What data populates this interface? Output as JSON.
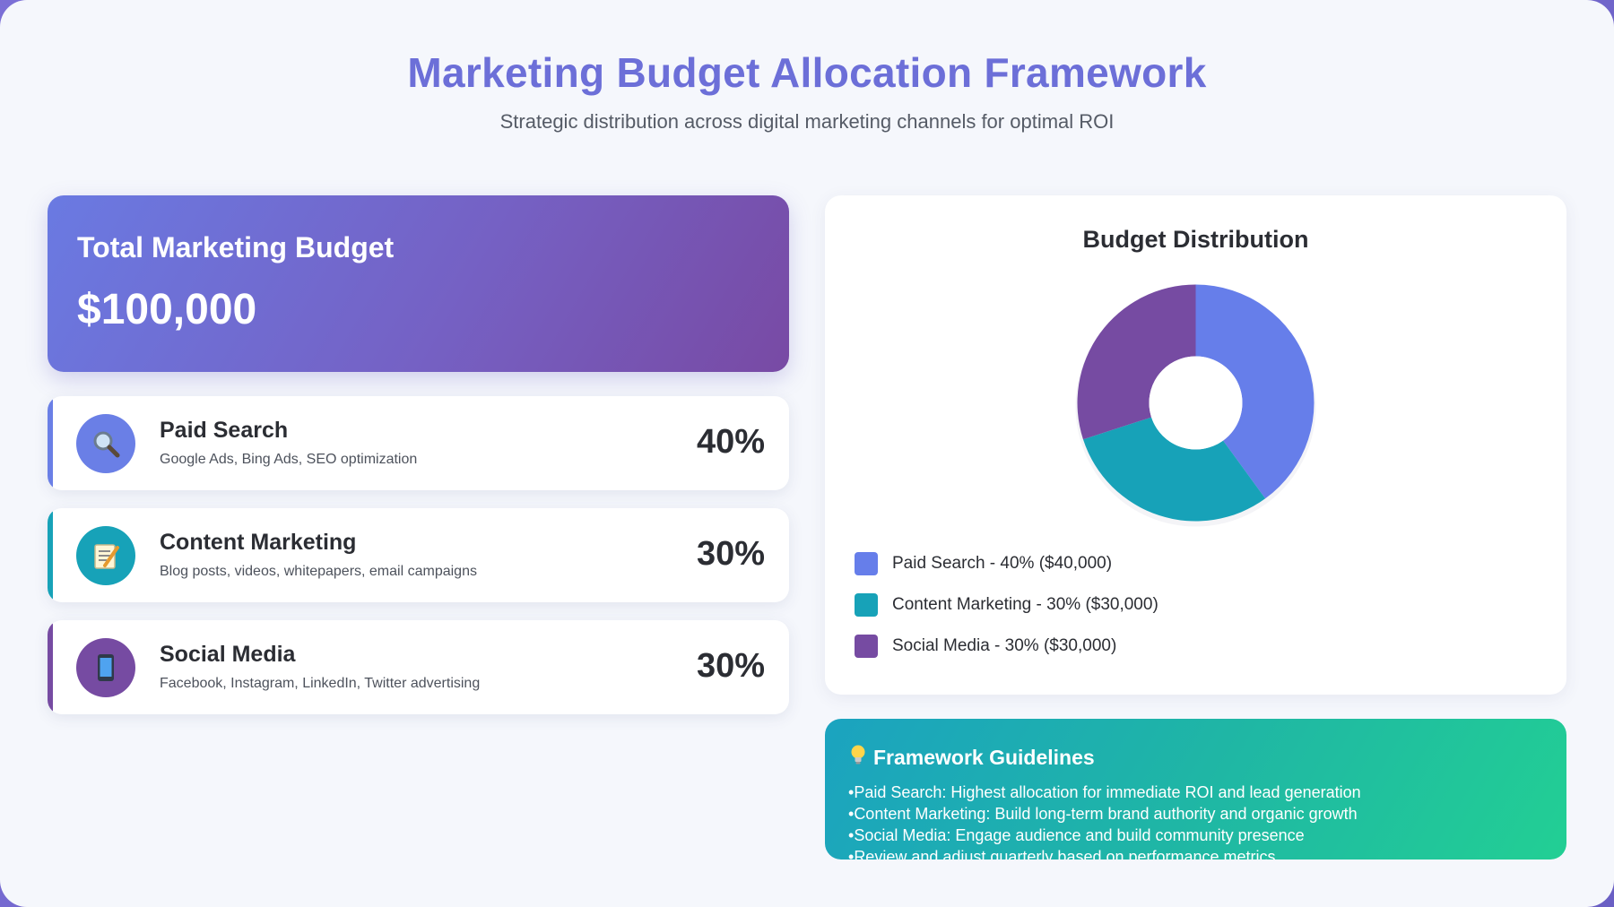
{
  "header": {
    "title": "Marketing Budget Allocation Framework",
    "subtitle": "Strategic distribution across digital marketing channels for optimal ROI"
  },
  "budget": {
    "label": "Total Marketing Budget",
    "value": "$100,000"
  },
  "channels": [
    {
      "name": "Paid Search",
      "description": "Google Ads, Bing Ads, SEO optimization",
      "percent": "40%",
      "icon": "magnifier-icon",
      "color": "#6a7fe6"
    },
    {
      "name": "Content Marketing",
      "description": "Blog posts, videos, whitepapers, email campaigns",
      "percent": "30%",
      "icon": "memo-icon",
      "color": "#17a2b8"
    },
    {
      "name": "Social Media",
      "description": "Facebook, Instagram, LinkedIn, Twitter advertising",
      "percent": "30%",
      "icon": "mobile-phone-icon",
      "color": "#764ba2"
    }
  ],
  "chart_data": {
    "type": "pie",
    "title": "Budget Distribution",
    "categories": [
      "Paid Search",
      "Content Marketing",
      "Social Media"
    ],
    "values": [
      40,
      30,
      30
    ],
    "colors": [
      "#667eea",
      "#17a2b8",
      "#764ba2"
    ],
    "legend": [
      "Paid Search - 40% ($40,000)",
      "Content Marketing - 30% ($30,000)",
      "Social Media - 30% ($30,000)"
    ],
    "legend_position": "bottom-left",
    "donut": true
  },
  "guidelines": {
    "icon": "lightbulb-icon",
    "title": "Framework Guidelines",
    "items": [
      "Paid Search: Highest allocation for immediate ROI and lead generation",
      "Content Marketing: Build long-term brand authority and organic growth",
      "Social Media: Engage audience and build community presence",
      "Review and adjust quarterly based on performance metrics"
    ]
  }
}
